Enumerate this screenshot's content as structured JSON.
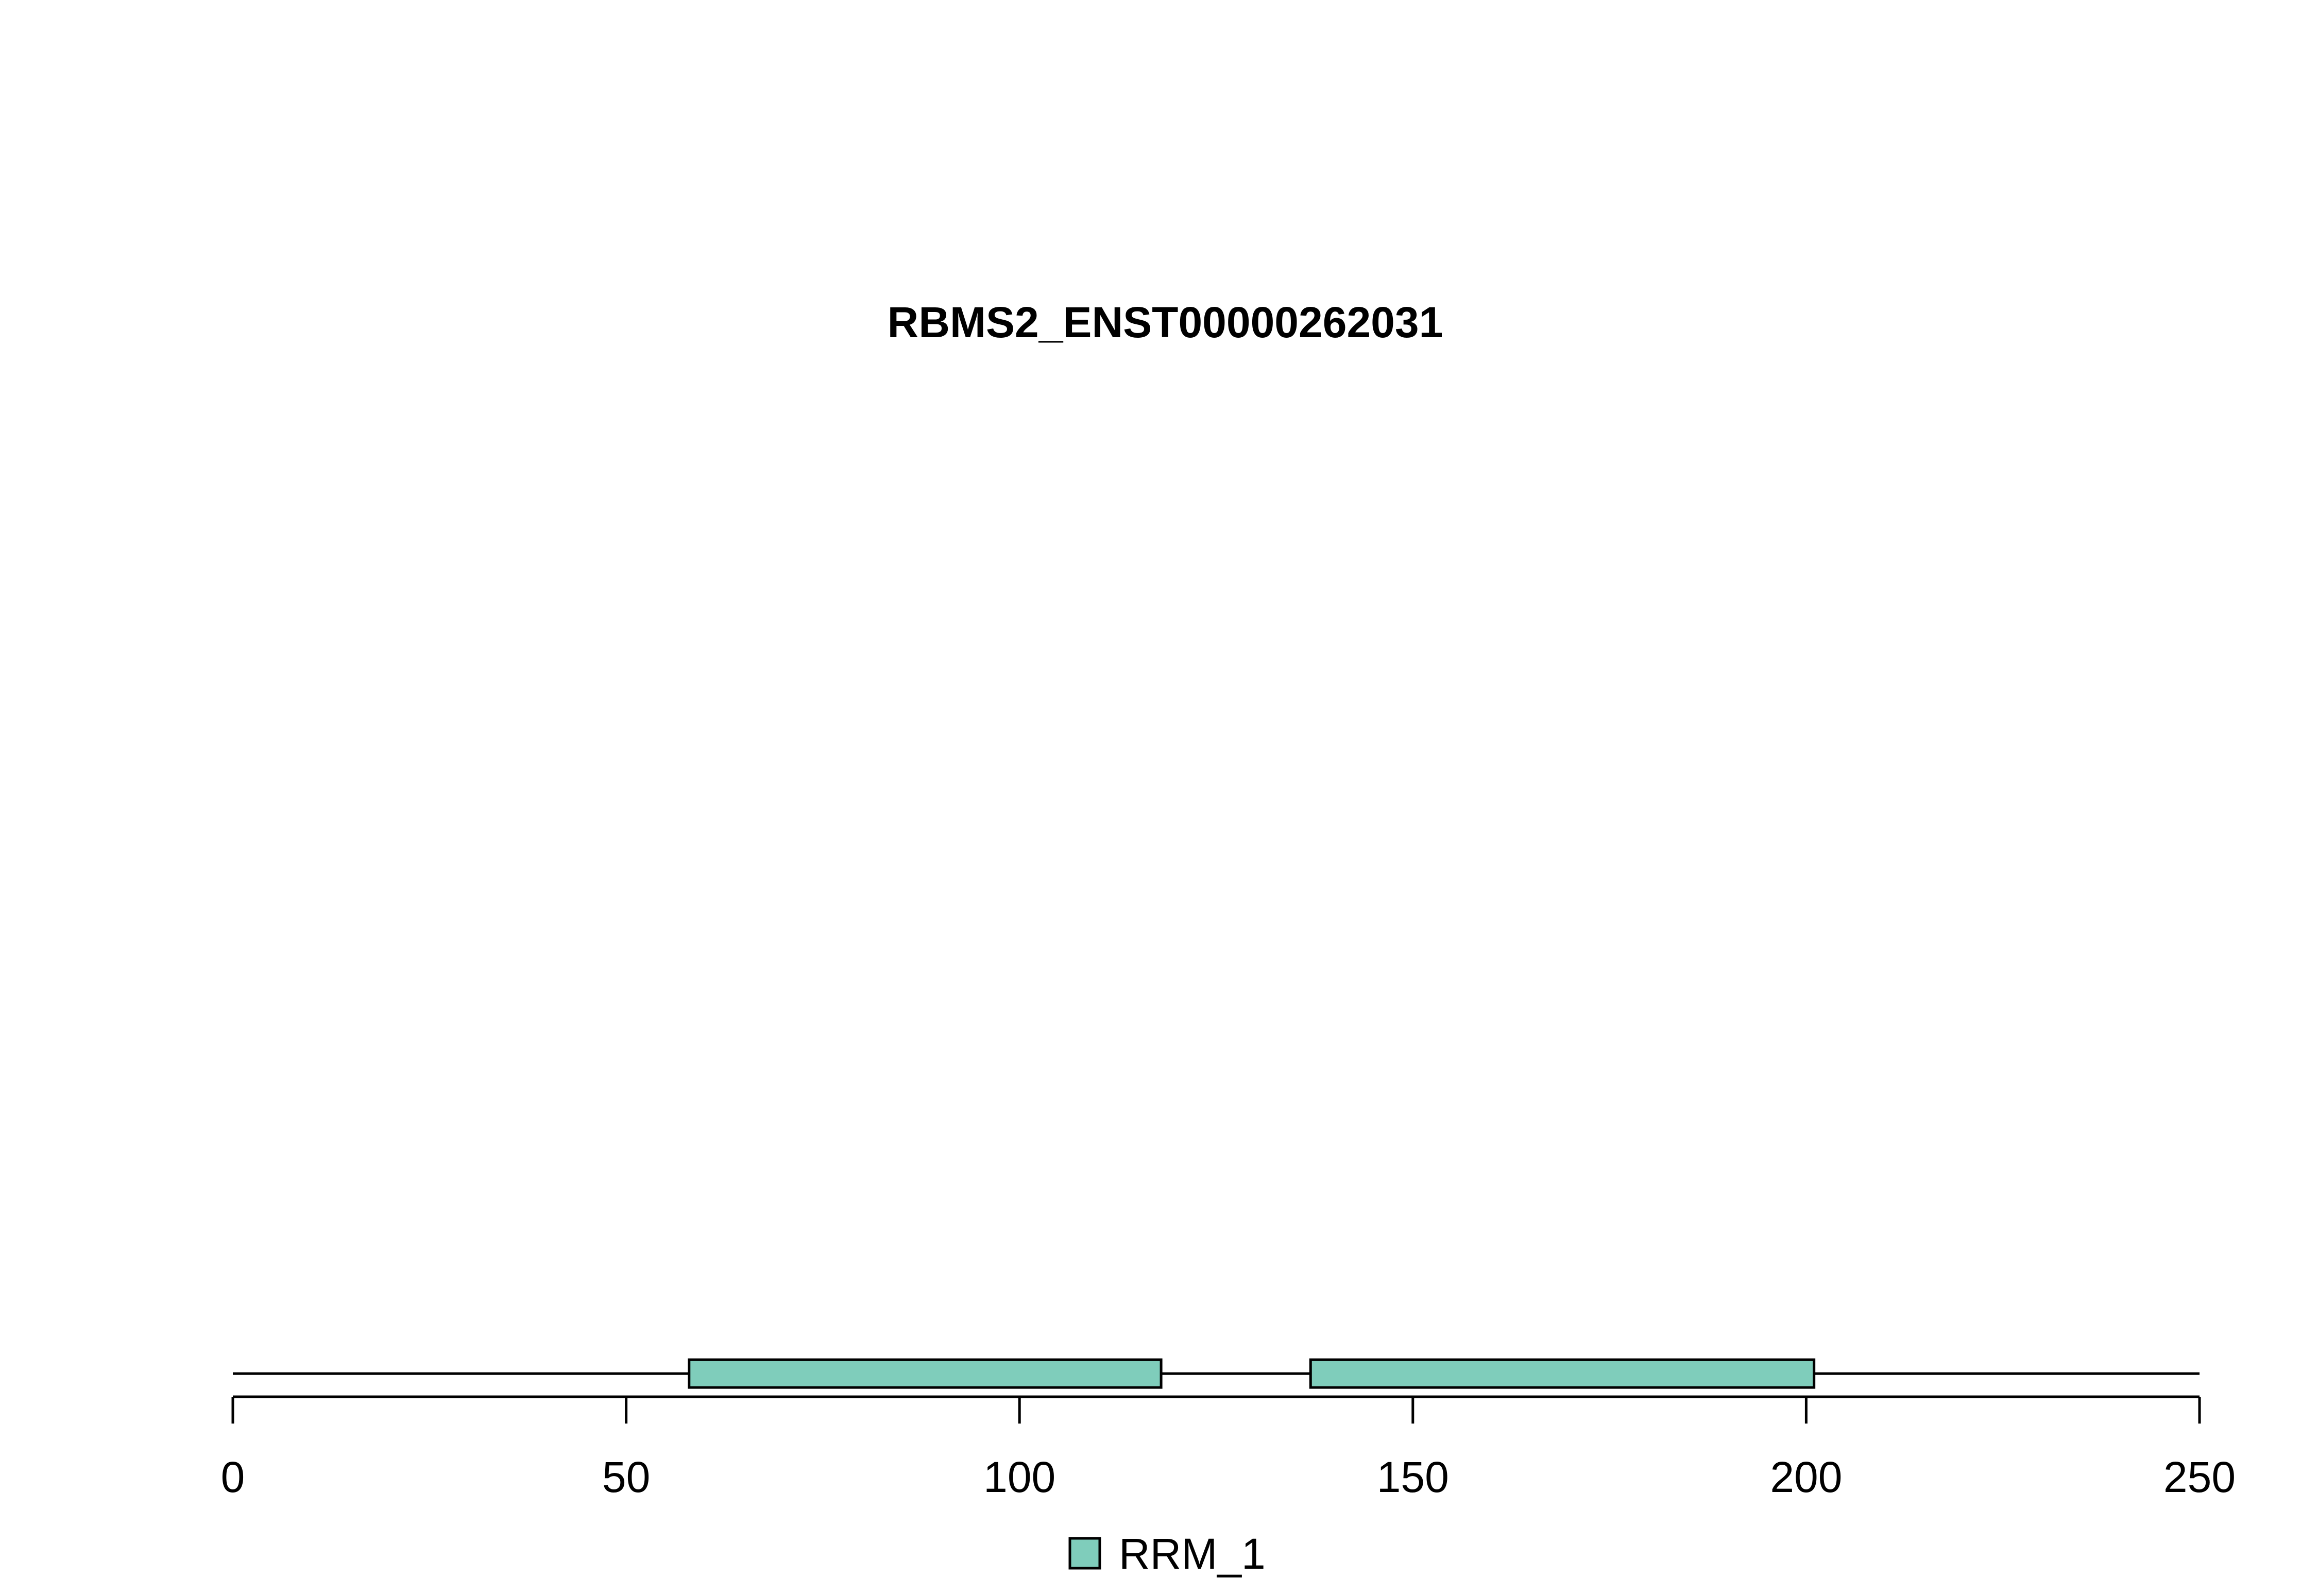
{
  "chart_data": {
    "type": "domain-map",
    "title": "RBMS2_ENST00000262031",
    "protein_length": 250,
    "xlim": [
      0,
      250
    ],
    "x_ticks": [
      0,
      50,
      100,
      150,
      200,
      250
    ],
    "x_tick_labels": [
      "0",
      "50",
      "100",
      "150",
      "200",
      "250"
    ],
    "domains": [
      {
        "name": "RRM_1",
        "start": 58,
        "end": 118,
        "color": "#7fcdbb"
      },
      {
        "name": "RRM_1",
        "start": 137,
        "end": 201,
        "color": "#7fcdbb"
      }
    ],
    "legend": {
      "placement": "bottom-center",
      "entries": [
        {
          "label": "RRM_1",
          "color": "#7fcdbb"
        }
      ]
    }
  }
}
